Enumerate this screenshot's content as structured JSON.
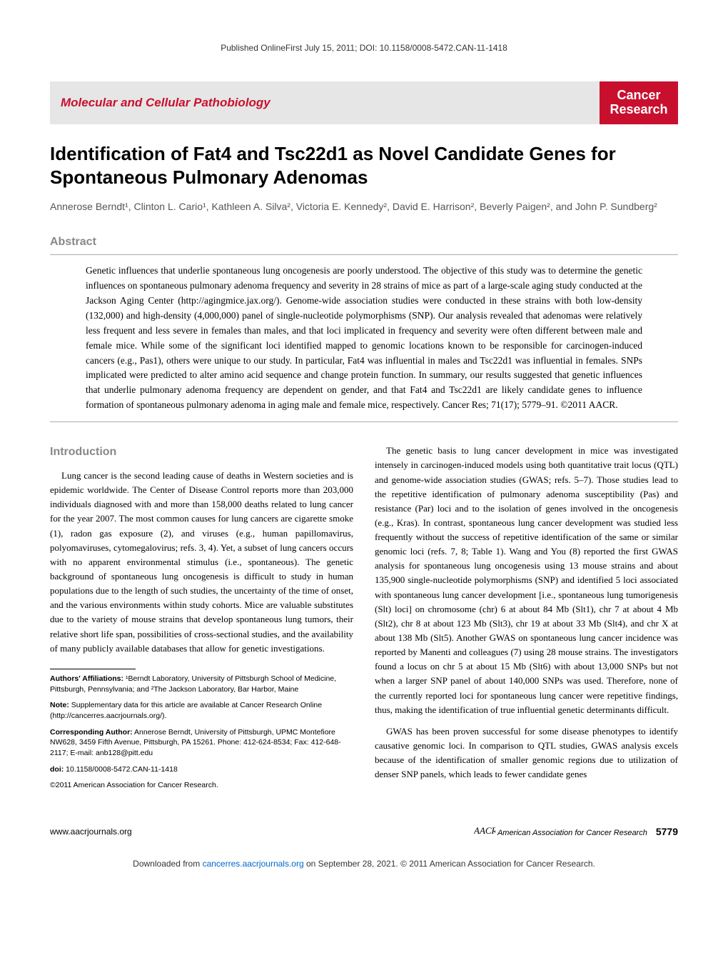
{
  "top_header": "Published OnlineFirst July 15, 2011; DOI: 10.1158/0008-5472.CAN-11-1418",
  "section_label": "Molecular and Cellular Pathobiology",
  "journal_label_line1": "Cancer",
  "journal_label_line2": "Research",
  "title": "Identification of Fat4 and Tsc22d1 as Novel Candidate Genes for Spontaneous Pulmonary Adenomas",
  "authors": "Annerose Berndt¹, Clinton L. Cario¹, Kathleen A. Silva², Victoria E. Kennedy², David E. Harrison², Beverly Paigen², and John P. Sundberg²",
  "abstract_heading": "Abstract",
  "abstract_text": "Genetic influences that underlie spontaneous lung oncogenesis are poorly understood. The objective of this study was to determine the genetic influences on spontaneous pulmonary adenoma frequency and severity in 28 strains of mice as part of a large-scale aging study conducted at the Jackson Aging Center (http://agingmice.jax.org/). Genome-wide association studies were conducted in these strains with both low-density (132,000) and high-density (4,000,000) panel of single-nucleotide polymorphisms (SNP). Our analysis revealed that adenomas were relatively less frequent and less severe in females than males, and that loci implicated in frequency and severity were often different between male and female mice. While some of the significant loci identified mapped to genomic locations known to be responsible for carcinogen-induced cancers (e.g., Pas1), others were unique to our study. In particular, Fat4 was influential in males and Tsc22d1 was influential in females. SNPs implicated were predicted to alter amino acid sequence and change protein function. In summary, our results suggested that genetic influences that underlie pulmonary adenoma frequency are dependent on gender, and that Fat4 and Tsc22d1 are likely candidate genes to influence formation of spontaneous pulmonary adenoma in aging male and female mice, respectively. Cancer Res; 71(17); 5779–91. ©2011 AACR.",
  "intro_heading": "Introduction",
  "left_col_p1": "Lung cancer is the second leading cause of deaths in Western societies and is epidemic worldwide. The Center of Disease Control reports more than 203,000 individuals diagnosed with and more than 158,000 deaths related to lung cancer for the year 2007. The most common causes for lung cancers are cigarette smoke (1), radon gas exposure (2), and viruses (e.g., human papillomavirus, polyomaviruses, cytomegalovirus; refs. 3, 4). Yet, a subset of lung cancers occurs with no apparent environmental stimulus (i.e., spontaneous). The genetic background of spontaneous lung oncogenesis is difficult to study in human populations due to the length of such studies, the uncertainty of the time of onset, and the various environments within study cohorts. Mice are valuable substitutes due to the variety of mouse strains that develop spontaneous lung tumors, their relative short life span, possibilities of cross-sectional studies, and the availability of many publicly available databases that allow for genetic investigations.",
  "right_col_p1": "The genetic basis to lung cancer development in mice was investigated intensely in carcinogen-induced models using both quantitative trait locus (QTL) and genome-wide association studies (GWAS; refs. 5–7). Those studies lead to the repetitive identification of pulmonary adenoma susceptibility (Pas) and resistance (Par) loci and to the isolation of genes involved in the oncogenesis (e.g., Kras). In contrast, spontaneous lung cancer development was studied less frequently without the success of repetitive identification of the same or similar genomic loci (refs. 7, 8; Table 1). Wang and You (8) reported the first GWAS analysis for spontaneous lung oncogenesis using 13 mouse strains and about 135,900 single-nucleotide polymorphisms (SNP) and identified 5 loci associated with spontaneous lung cancer development [i.e., spontaneous lung tumorigenesis (Slt) loci] on chromosome (chr) 6 at about 84 Mb (Slt1), chr 7 at about 4 Mb (Slt2), chr 8 at about 123 Mb (Slt3), chr 19 at about 33 Mb (Slt4), and chr X at about 138 Mb (Slt5). Another GWAS on spontaneous lung cancer incidence was reported by Manenti and colleagues (7) using 28 mouse strains. The investigators found a locus on chr 5 at about 15 Mb (Slt6) with about 13,000 SNPs but not when a larger SNP panel of about 140,000 SNPs was used. Therefore, none of the currently reported loci for spontaneous lung cancer were repetitive findings, thus, making the identification of true influential genetic determinants difficult.",
  "right_col_p2": "GWAS has been proven successful for some disease phenotypes to identify causative genomic loci. In comparison to QTL studies, GWAS analysis excels because of the identification of smaller genomic regions due to utilization of denser SNP panels, which leads to fewer candidate genes",
  "footnotes": {
    "affiliations_label": "Authors' Affiliations:",
    "affiliations_text": " ¹Berndt Laboratory, University of Pittsburgh School of Medicine, Pittsburgh, Pennsylvania; and ²The Jackson Laboratory, Bar Harbor, Maine",
    "note_label": "Note:",
    "note_text": " Supplementary data for this article are available at Cancer Research Online (http://cancerres.aacrjournals.org/).",
    "corresponding_label": "Corresponding Author:",
    "corresponding_text": " Annerose Berndt, University of Pittsburgh, UPMC Montefiore NW628, 3459 Fifth Avenue, Pittsburgh, PA 15261. Phone: 412-624-8534; Fax: 412-648-2117; E-mail: anb128@pitt.edu",
    "doi_label": "doi:",
    "doi_text": " 10.1158/0008-5472.CAN-11-1418",
    "copyright": "©2011 American Association for Cancer Research."
  },
  "footer": {
    "left": "www.aacrjournals.org",
    "logo_text": "American Association for Cancer Research",
    "page_number": "5779"
  },
  "bottom_bar_prefix": "Downloaded from ",
  "bottom_bar_link": "cancerres.aacrjournals.org",
  "bottom_bar_suffix": " on September 28, 2021. © 2011 American Association for Cancer Research.",
  "colors": {
    "brand_red": "#c8102e",
    "section_bg": "#e6e6e6",
    "heading_gray": "#888888",
    "link_blue": "#0066cc"
  }
}
